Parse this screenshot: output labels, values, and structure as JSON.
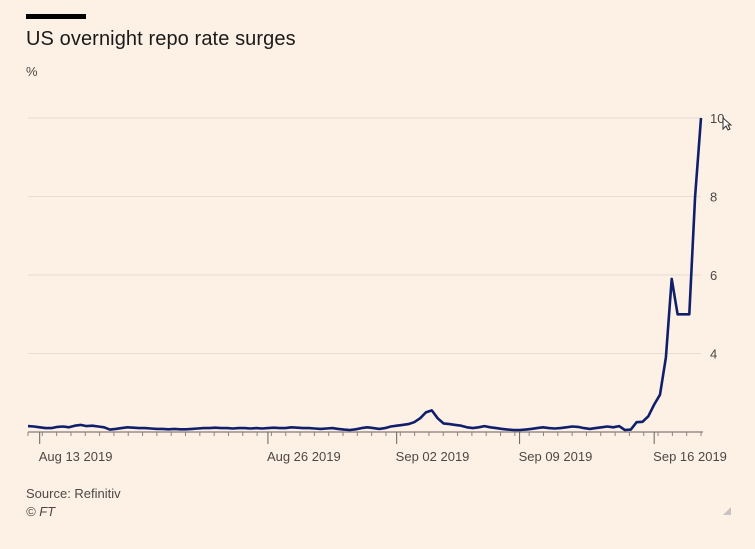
{
  "chart_data": {
    "type": "line",
    "title": "US overnight repo rate surges",
    "ylabel": "%",
    "xlabel": "",
    "ylim": [
      2,
      10
    ],
    "yticks": [
      4,
      6,
      8,
      10
    ],
    "grid": true,
    "x_tick_labels": [
      "Aug 13 2019",
      "Aug 26 2019",
      "Sep 02 2019",
      "Sep 09 2019",
      "Sep 16 2019"
    ],
    "x_tick_positions": [
      2,
      41,
      63,
      84,
      107
    ],
    "x_max": 115,
    "series": [
      {
        "name": "US overnight repo rate",
        "color": "#0f1f6b",
        "values": [
          2.15,
          2.14,
          2.12,
          2.1,
          2.1,
          2.13,
          2.14,
          2.12,
          2.16,
          2.18,
          2.15,
          2.16,
          2.14,
          2.12,
          2.06,
          2.08,
          2.1,
          2.12,
          2.11,
          2.1,
          2.1,
          2.09,
          2.08,
          2.08,
          2.07,
          2.08,
          2.07,
          2.07,
          2.08,
          2.09,
          2.1,
          2.1,
          2.11,
          2.1,
          2.1,
          2.09,
          2.1,
          2.1,
          2.09,
          2.1,
          2.09,
          2.1,
          2.11,
          2.1,
          2.1,
          2.12,
          2.11,
          2.1,
          2.1,
          2.09,
          2.08,
          2.09,
          2.1,
          2.08,
          2.06,
          2.05,
          2.07,
          2.1,
          2.12,
          2.1,
          2.08,
          2.1,
          2.14,
          2.16,
          2.18,
          2.2,
          2.25,
          2.35,
          2.5,
          2.55,
          2.35,
          2.22,
          2.2,
          2.18,
          2.16,
          2.12,
          2.1,
          2.12,
          2.15,
          2.12,
          2.1,
          2.08,
          2.06,
          2.05,
          2.05,
          2.06,
          2.08,
          2.1,
          2.12,
          2.1,
          2.09,
          2.1,
          2.12,
          2.14,
          2.13,
          2.1,
          2.08,
          2.1,
          2.12,
          2.14,
          2.12,
          2.15,
          2.05,
          2.06,
          2.25,
          2.26,
          2.4,
          2.7,
          2.95,
          3.9,
          5.9,
          5.0,
          5.0,
          5.0,
          8.0,
          10.0
        ]
      }
    ]
  },
  "source": "Source: Refinitiv",
  "copyright": "© FT"
}
